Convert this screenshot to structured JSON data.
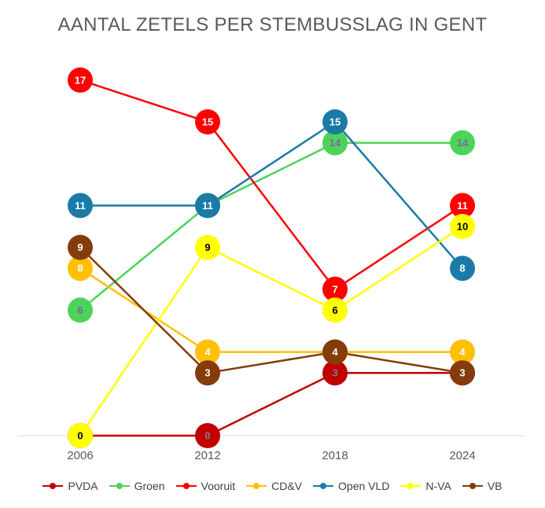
{
  "chart_data": {
    "type": "line",
    "title": "AANTAL ZETELS PER STEMBUSSLAG IN GENT",
    "x": [
      "2006",
      "2012",
      "2018",
      "2024"
    ],
    "ylim": [
      0,
      18
    ],
    "grid": false,
    "legend_position": "bottom",
    "series": [
      {
        "name": "PVDA",
        "color": "#C00000",
        "label_color": "#7F7F7F",
        "values": [
          0,
          0,
          3,
          3
        ]
      },
      {
        "name": "Groen",
        "color": "#4CD45A",
        "label_color": "#8064A2",
        "values": [
          6,
          11,
          14,
          14
        ]
      },
      {
        "name": "Vooruit",
        "color": "#FF0000",
        "label_color": "#FFFFFF",
        "values": [
          17,
          15,
          7,
          11
        ]
      },
      {
        "name": "CD&V",
        "color": "#FFC000",
        "label_color": "#FFFFFF",
        "values": [
          8,
          4,
          4,
          4
        ]
      },
      {
        "name": "Open VLD",
        "color": "#1A7BA8",
        "label_color": "#FFFFFF",
        "values": [
          11,
          11,
          15,
          8
        ]
      },
      {
        "name": "N-VA",
        "color": "#FFFF00",
        "label_color": "#000000",
        "values": [
          0,
          9,
          6,
          10
        ]
      },
      {
        "name": "VB",
        "color": "#843C0C",
        "label_color": "#FFFFFF",
        "values": [
          9,
          3,
          4,
          3
        ]
      }
    ]
  }
}
